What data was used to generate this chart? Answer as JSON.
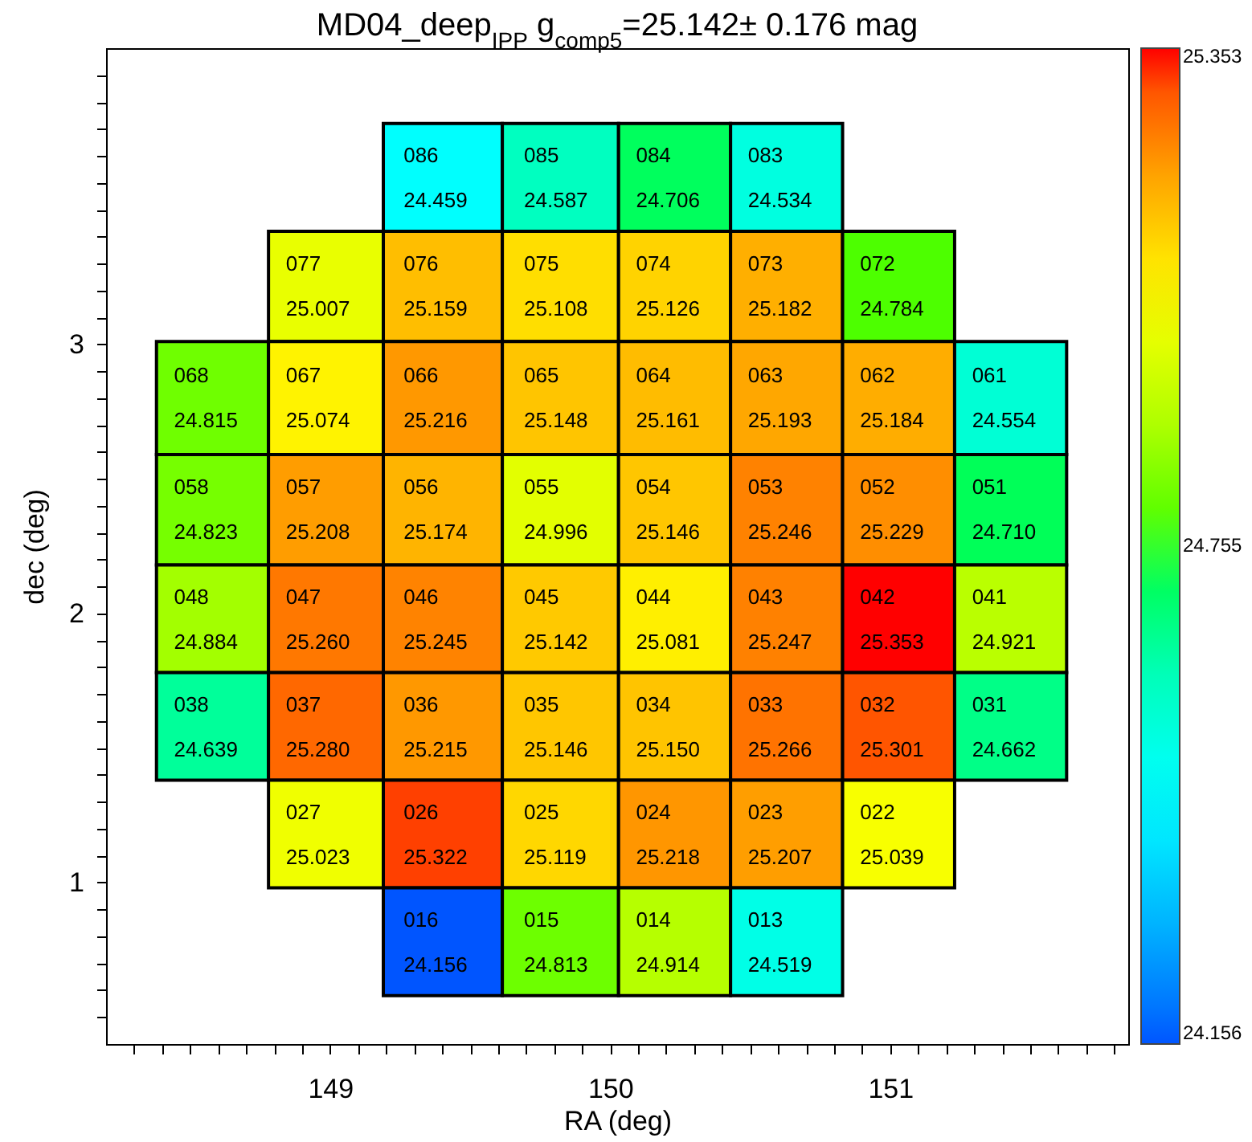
{
  "chart_data": {
    "type": "heatmap",
    "title": "MD04_deep$_{IPP}$ g$_{comp5}$=25.142± 0.176 mag",
    "xlabel": "RA (deg)",
    "ylabel": "dec (deg)",
    "x": [
      148.58,
      148.98,
      149.4,
      149.83,
      150.23,
      150.63,
      151.03,
      151.43
    ],
    "y": [
      3.62,
      3.22,
      2.8,
      2.38,
      1.98,
      1.58,
      1.18,
      0.78
    ],
    "cells": [
      [
        null,
        null,
        24.459,
        24.587,
        24.706,
        24.534,
        null,
        null
      ],
      [
        null,
        25.007,
        25.159,
        25.108,
        25.126,
        25.182,
        24.784,
        null
      ],
      [
        24.815,
        25.074,
        25.216,
        25.148,
        25.161,
        25.193,
        25.184,
        24.554
      ],
      [
        24.823,
        25.208,
        25.174,
        24.996,
        25.146,
        25.246,
        25.229,
        24.71
      ],
      [
        24.884,
        25.26,
        25.245,
        25.142,
        25.081,
        25.247,
        25.353,
        24.921
      ],
      [
        24.639,
        25.28,
        25.215,
        25.146,
        25.15,
        25.266,
        25.301,
        24.662
      ],
      [
        null,
        25.023,
        25.322,
        25.119,
        25.218,
        25.207,
        25.039,
        null
      ],
      [
        null,
        null,
        24.156,
        24.813,
        24.914,
        24.519,
        null,
        null
      ]
    ],
    "cell_labels": [
      [
        null,
        null,
        "086\n24.459",
        "085\n24.587",
        "084\n24.706",
        "083\n24.534",
        null,
        null
      ],
      [
        null,
        "077\n25.007",
        "076\n25.159",
        "075\n25.108",
        "074\n25.126",
        "073\n25.182",
        "072\n24.784",
        null
      ],
      [
        "068\n24.815",
        "067\n25.074",
        "066\n25.216",
        "065\n25.148",
        "064\n25.161",
        "063\n25.193",
        "062\n25.184",
        "061\n24.554"
      ],
      [
        "058\n24.823",
        "057\n25.208",
        "056\n25.174",
        "055\n24.996",
        "054\n25.146",
        "053\n25.246",
        "052\n25.229",
        "051\n24.710"
      ],
      [
        "048\n24.884",
        "047\n25.260",
        "046\n25.245",
        "045\n25.142",
        "044\n25.081",
        "043\n25.247",
        "042\n25.353",
        "041\n24.921"
      ],
      [
        "038\n24.639",
        "037\n25.280",
        "036\n25.215",
        "035\n25.146",
        "034\n25.150",
        "033\n25.266",
        "032\n25.301",
        "031\n24.662"
      ],
      [
        null,
        "027\n25.023",
        "026\n25.322",
        "025\n25.119",
        "024\n25.218",
        "023\n25.207",
        "022\n25.039",
        null
      ],
      [
        null,
        null,
        "016\n24.156",
        "015\n24.813",
        "014\n24.914",
        "013\n24.519",
        null,
        null
      ]
    ],
    "clim": [
      24.156,
      25.353
    ],
    "cticks": [
      24.156,
      24.755,
      25.353
    ],
    "xlim": [
      148.2,
      151.85
    ],
    "xticks": [
      {
        "value": 148.3,
        "label": null
      },
      {
        "value": 148.4,
        "label": null
      },
      {
        "value": 148.5,
        "label": null
      },
      {
        "value": 148.6,
        "label": null
      },
      {
        "value": 148.7,
        "label": null
      },
      {
        "value": 148.8,
        "label": null
      },
      {
        "value": 148.9,
        "label": null
      },
      149,
      {
        "value": 149.1,
        "label": null
      },
      {
        "value": 149.2,
        "label": null
      },
      {
        "value": 149.3,
        "label": null
      },
      {
        "value": 149.4,
        "label": null
      },
      {
        "value": 149.5,
        "label": null
      },
      {
        "value": 149.6,
        "label": null
      },
      {
        "value": 149.7,
        "label": null
      },
      {
        "value": 149.8,
        "label": null
      },
      {
        "value": 149.9,
        "label": null
      },
      150,
      {
        "value": 150.1,
        "label": null
      },
      {
        "value": 150.2,
        "label": null
      },
      {
        "value": 150.3,
        "label": null
      },
      {
        "value": 150.4,
        "label": null
      },
      {
        "value": 150.5,
        "label": null
      },
      {
        "value": 150.6,
        "label": null
      },
      {
        "value": 150.7,
        "label": null
      },
      {
        "value": 150.8,
        "label": null
      },
      {
        "value": 150.9,
        "label": null
      },
      151,
      {
        "value": 151.1,
        "label": null
      },
      {
        "value": 151.2,
        "label": null
      },
      {
        "value": 151.3,
        "label": null
      },
      {
        "value": 151.4,
        "label": null
      },
      {
        "value": 151.5,
        "label": null
      },
      {
        "value": 151.6,
        "label": null
      },
      {
        "value": 151.7,
        "label": null
      },
      {
        "value": 151.8,
        "label": null
      }
    ],
    "ylim": [
      0.4,
      4.1
    ],
    "yticks": [
      {
        "value": 0.5,
        "label": null
      },
      {
        "value": 0.6,
        "label": null
      },
      {
        "value": 0.7,
        "label": null
      },
      {
        "value": 0.8,
        "label": null
      },
      {
        "value": 0.9,
        "label": null
      },
      1,
      {
        "value": 1.1,
        "label": null
      },
      {
        "value": 1.2,
        "label": null
      },
      {
        "value": 1.3,
        "label": null
      },
      {
        "value": 1.4,
        "label": null
      },
      {
        "value": 1.5,
        "label": null
      },
      {
        "value": 1.6,
        "label": null
      },
      {
        "value": 1.7,
        "label": null
      },
      {
        "value": 1.8,
        "label": null
      },
      {
        "value": 1.9,
        "label": null
      },
      2,
      {
        "value": 2.1,
        "label": null
      },
      {
        "value": 2.2,
        "label": null
      },
      {
        "value": 2.3,
        "label": null
      },
      {
        "value": 2.4,
        "label": null
      },
      {
        "value": 2.5,
        "label": null
      },
      {
        "value": 2.6,
        "label": null
      },
      {
        "value": 2.7,
        "label": null
      },
      {
        "value": 2.8,
        "label": null
      },
      {
        "value": 2.9,
        "label": null
      },
      3,
      {
        "value": 3.1,
        "label": null
      },
      {
        "value": 3.2,
        "label": null
      },
      {
        "value": 3.3,
        "label": null
      },
      {
        "value": 3.4,
        "label": null
      },
      {
        "value": 3.5,
        "label": null
      },
      {
        "value": 3.6,
        "label": null
      },
      {
        "value": 3.7,
        "label": null
      },
      {
        "value": 3.8,
        "label": null
      },
      {
        "value": 3.9,
        "label": null
      },
      {
        "value": 4.0,
        "label": null
      }
    ],
    "grid": false
  }
}
